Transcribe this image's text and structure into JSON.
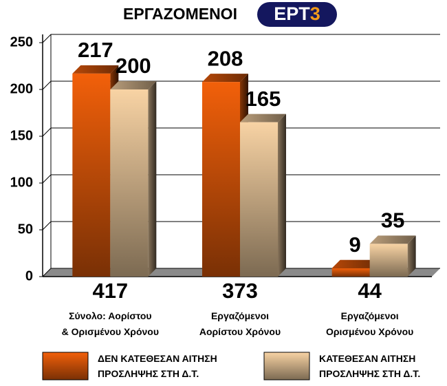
{
  "logo": {
    "letters": "ΕΡΤ",
    "number": "3"
  },
  "chart_data": {
    "type": "bar3d",
    "title": "ΕΡΓΑΖΟΜΕΝΟΙ",
    "categories": [
      "Σύνολο: Αορίστου\n& Ορισμένου Χρόνου",
      "Εργαζόμενοι\nΑορίστου Χρόνου",
      "Εργαζόμενοι\nΟρισμένου Χρόνου"
    ],
    "totals": [
      417,
      373,
      44
    ],
    "series": [
      {
        "name": "ΔΕΝ ΚΑΤΕΘΕΣΑΝ ΑΙΤΗΣΗ\nΠΡΟΣΛΗΨΗΣ ΣΤΗ Δ.Τ.",
        "color": "#f2600a",
        "values": [
          217,
          208,
          9
        ]
      },
      {
        "name": "ΚΑΤΕΘΕΣΑΝ ΑΙΤΗΣΗ\nΠΡΟΣΛΗΨΗΣ ΣΤΗ Δ.Τ.",
        "color": "#f8d3a4",
        "values": [
          200,
          165,
          35
        ]
      }
    ],
    "ylim": [
      0,
      250
    ],
    "yticks": [
      0,
      50,
      100,
      150,
      200,
      250
    ],
    "grid": true
  }
}
